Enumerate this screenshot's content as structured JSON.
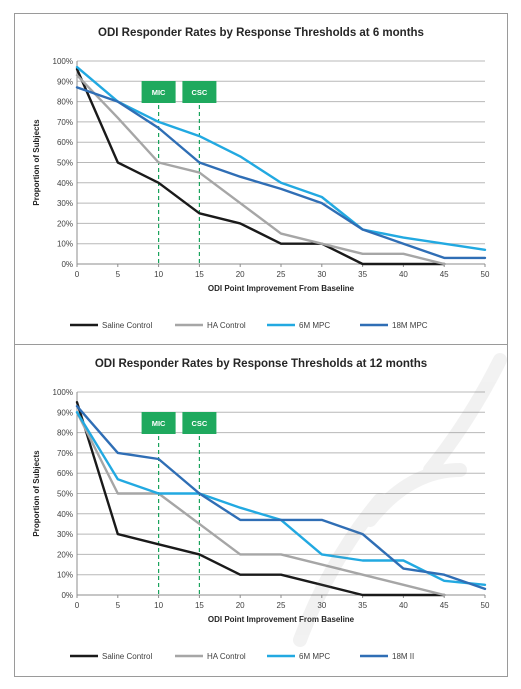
{
  "chart_data": [
    {
      "type": "line",
      "title": "ODI Responder Rates by Response Thresholds at 6 months",
      "xlabel": "ODI Point Improvement From Baseline",
      "ylabel": "Proportion of Subjects",
      "x": [
        0,
        5,
        10,
        15,
        20,
        25,
        30,
        35,
        40,
        45,
        50
      ],
      "xlim": [
        0,
        50
      ],
      "ylim": [
        0,
        100
      ],
      "x_ticks": [
        "0",
        "5",
        "10",
        "15",
        "20",
        "25",
        "30",
        "35",
        "40",
        "45",
        "50"
      ],
      "y_ticks": [
        "0%",
        "10%",
        "20%",
        "30%",
        "40%",
        "50%",
        "60%",
        "70%",
        "80%",
        "90%",
        "100%"
      ],
      "grid": "horizontal",
      "legend_position": "bottom",
      "markers": [
        {
          "label": "MIC",
          "x": 10
        },
        {
          "label": "CSC",
          "x": 15
        }
      ],
      "series": [
        {
          "name": "Saline Control",
          "color": "#1a1a1a",
          "values": [
            96,
            50,
            40,
            25,
            20,
            10,
            10,
            0,
            0,
            0,
            null
          ]
        },
        {
          "name": "HA Control",
          "color": "#a6a6a6",
          "values": [
            93,
            72,
            50,
            45,
            30,
            15,
            10,
            5,
            5,
            0,
            null
          ]
        },
        {
          "name": "6M MPC",
          "color": "#22a9e1",
          "values": [
            97,
            80,
            70,
            63,
            53,
            40,
            33,
            17,
            13,
            10,
            7
          ]
        },
        {
          "name": "18M MPC",
          "color": "#2f6eb5",
          "values": [
            87,
            80,
            67,
            50,
            43,
            37,
            30,
            17,
            10,
            3,
            3
          ]
        }
      ]
    },
    {
      "type": "line",
      "title": "ODI Responder Rates by Response Thresholds at 12 months",
      "xlabel": "ODI Point Improvement From Baseline",
      "ylabel": "Proportion of Subjects",
      "x": [
        0,
        5,
        10,
        15,
        20,
        25,
        30,
        35,
        40,
        45,
        50
      ],
      "xlim": [
        0,
        50
      ],
      "ylim": [
        0,
        100
      ],
      "x_ticks": [
        "0",
        "5",
        "10",
        "15",
        "20",
        "25",
        "30",
        "35",
        "40",
        "45",
        "50"
      ],
      "y_ticks": [
        "0%",
        "10%",
        "20%",
        "30%",
        "40%",
        "50%",
        "60%",
        "70%",
        "80%",
        "90%",
        "100%"
      ],
      "grid": "horizontal",
      "legend_position": "bottom",
      "markers": [
        {
          "label": "MIC",
          "x": 10
        },
        {
          "label": "CSC",
          "x": 15
        }
      ],
      "series": [
        {
          "name": "Saline Control",
          "color": "#1a1a1a",
          "values": [
            95,
            30,
            25,
            20,
            10,
            10,
            5,
            0,
            0,
            0,
            null
          ]
        },
        {
          "name": "HA Control",
          "color": "#a6a6a6",
          "values": [
            90,
            50,
            50,
            35,
            20,
            20,
            15,
            10,
            5,
            0,
            null
          ]
        },
        {
          "name": "6M MPC",
          "color": "#22a9e1",
          "values": [
            90,
            57,
            50,
            50,
            43,
            37,
            20,
            17,
            17,
            7,
            5
          ]
        },
        {
          "name": "18M II",
          "color": "#2f6eb5",
          "values": [
            93,
            70,
            67,
            50,
            37,
            37,
            37,
            30,
            13,
            10,
            3
          ]
        }
      ]
    }
  ]
}
